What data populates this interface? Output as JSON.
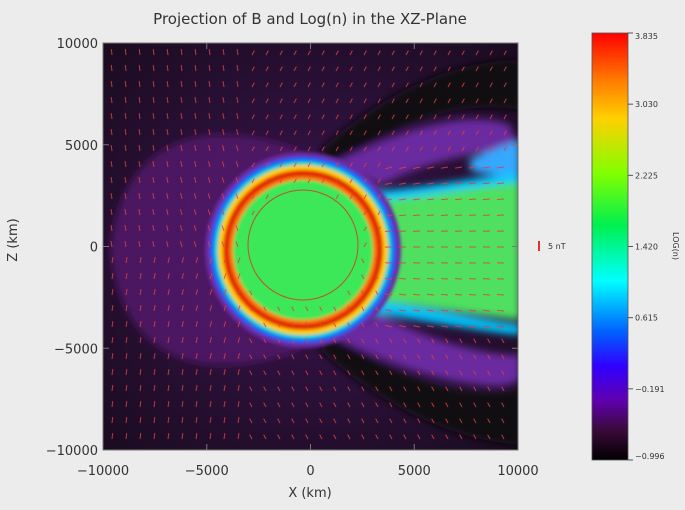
{
  "chart_data": {
    "type": "heatmap",
    "title": "Projection of B and Log(n) in the XZ-Plane",
    "xlabel": "X (km)",
    "ylabel": "Z (km)",
    "xlim": [
      -10000,
      10000
    ],
    "ylim": [
      -10000,
      10000
    ],
    "x_ticks": [
      "−10000",
      "−5000",
      "0",
      "5000",
      "10000"
    ],
    "y_ticks": [
      "10000",
      "5000",
      "0",
      "−5000",
      "−10000"
    ],
    "colorbar": {
      "label": "LOG(n)",
      "range": [
        -0.996,
        3.835
      ],
      "tick_labels": [
        "3.835",
        "3.030",
        "2.225",
        "1.420",
        "0.615",
        "−0.191",
        "−0.996"
      ],
      "colors": [
        "#ff0000",
        "#ffa500",
        "#ffff00",
        "#00ff00",
        "#00ffff",
        "#0050ff",
        "#2a00ff",
        "#6000c0",
        "#3a0840",
        "#000000"
      ]
    },
    "vector_legend": {
      "label": "5 nT",
      "color": "#e03030"
    },
    "obstacle": {
      "center": [
        0,
        0
      ],
      "radius_km": 4300,
      "core_value": 1.6,
      "ring_value": 3.8
    }
  }
}
